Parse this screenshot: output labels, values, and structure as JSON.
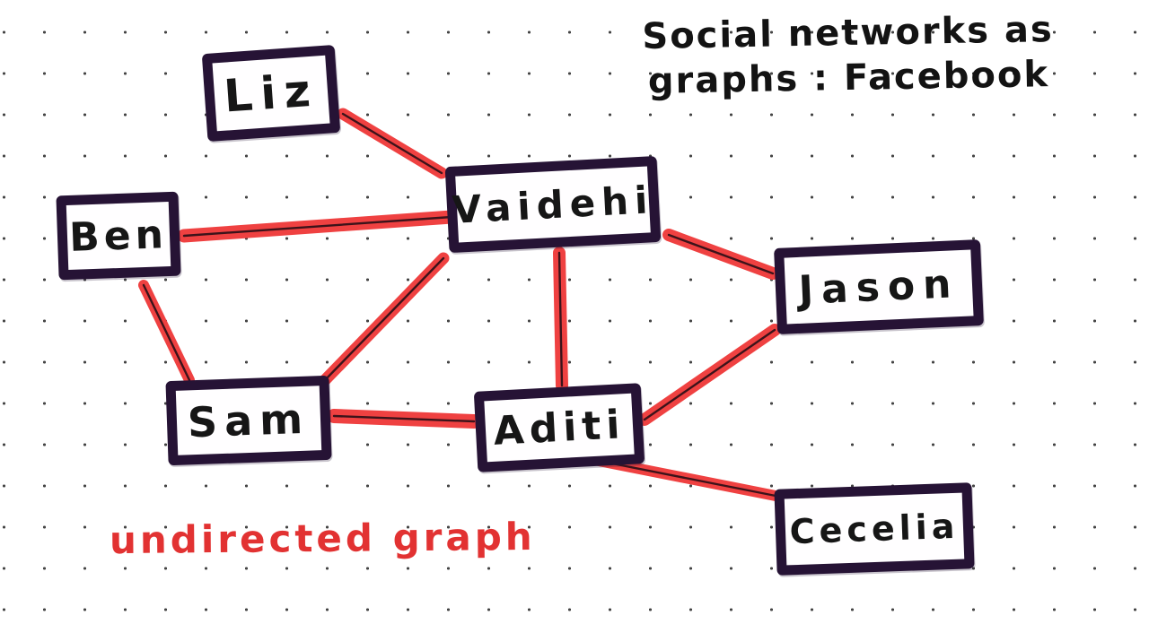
{
  "title": {
    "line1": "Social networks as",
    "line2": "graphs : Facebook"
  },
  "annotation": "undirected graph",
  "graph": {
    "type": "undirected",
    "nodes": [
      {
        "id": "liz",
        "label": "Liz"
      },
      {
        "id": "ben",
        "label": "Ben"
      },
      {
        "id": "sam",
        "label": "Sam"
      },
      {
        "id": "vaidehi",
        "label": "Vaidehi"
      },
      {
        "id": "aditi",
        "label": "Aditi"
      },
      {
        "id": "jason",
        "label": "Jason"
      },
      {
        "id": "cecelia",
        "label": "Cecelia"
      }
    ],
    "edges": [
      [
        "liz",
        "vaidehi"
      ],
      [
        "ben",
        "vaidehi"
      ],
      [
        "ben",
        "sam"
      ],
      [
        "sam",
        "vaidehi"
      ],
      [
        "sam",
        "aditi"
      ],
      [
        "vaidehi",
        "aditi"
      ],
      [
        "vaidehi",
        "jason"
      ],
      [
        "aditi",
        "jason"
      ],
      [
        "aditi",
        "cecelia"
      ]
    ]
  },
  "colors": {
    "edge": "#ef4141",
    "edge_core": "#3c131a",
    "node_border": "#261335",
    "node_text": "#161616",
    "title_text": "#131313",
    "annotation_text": "#e23232",
    "background": "#ffffff",
    "dot": "#454545"
  }
}
